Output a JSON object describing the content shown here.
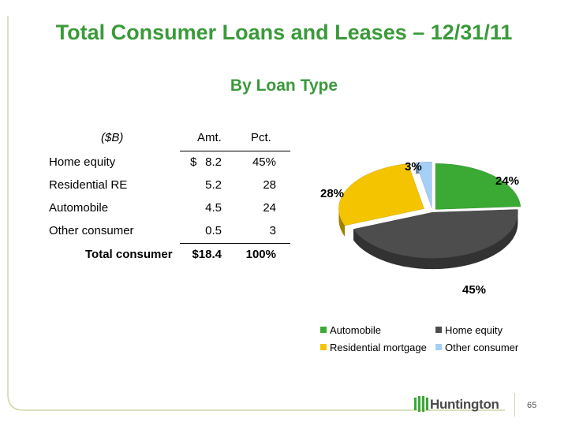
{
  "slide": {
    "title": "Total Consumer Loans and Leases – 12/31/11",
    "subtitle": "By Loan Type",
    "page_number": "65",
    "brand": "Huntington"
  },
  "table": {
    "headers": {
      "label": "($B)",
      "amt": "Amt.",
      "pct": "Pct."
    },
    "rows": [
      {
        "label": "Home equity",
        "currency": "$",
        "amt": "8.2",
        "pct": "45%"
      },
      {
        "label": "Residential RE",
        "currency": "",
        "amt": "5.2",
        "pct": "28"
      },
      {
        "label": "Automobile",
        "currency": "",
        "amt": "4.5",
        "pct": "24"
      },
      {
        "label": "Other consumer",
        "currency": "",
        "amt": "0.5",
        "pct": "3"
      }
    ],
    "total": {
      "label": "Total consumer",
      "amt": "$18.4",
      "pct": "100%"
    }
  },
  "chart_data": {
    "type": "pie",
    "title": "",
    "labels": [
      "Automobile",
      "Home equity",
      "Residential mortgage",
      "Other consumer"
    ],
    "values": [
      24,
      45,
      28,
      3
    ],
    "data_labels": [
      "24%",
      "45%",
      "28%",
      "3%"
    ],
    "colors": [
      "#3aaa35",
      "#4d4d4d",
      "#f5c400",
      "#a6cff5"
    ],
    "style": "3d-exploded",
    "legend_position": "bottom"
  },
  "colors": {
    "title": "#3a9a3a",
    "frame_line": "#cfd6a6"
  }
}
